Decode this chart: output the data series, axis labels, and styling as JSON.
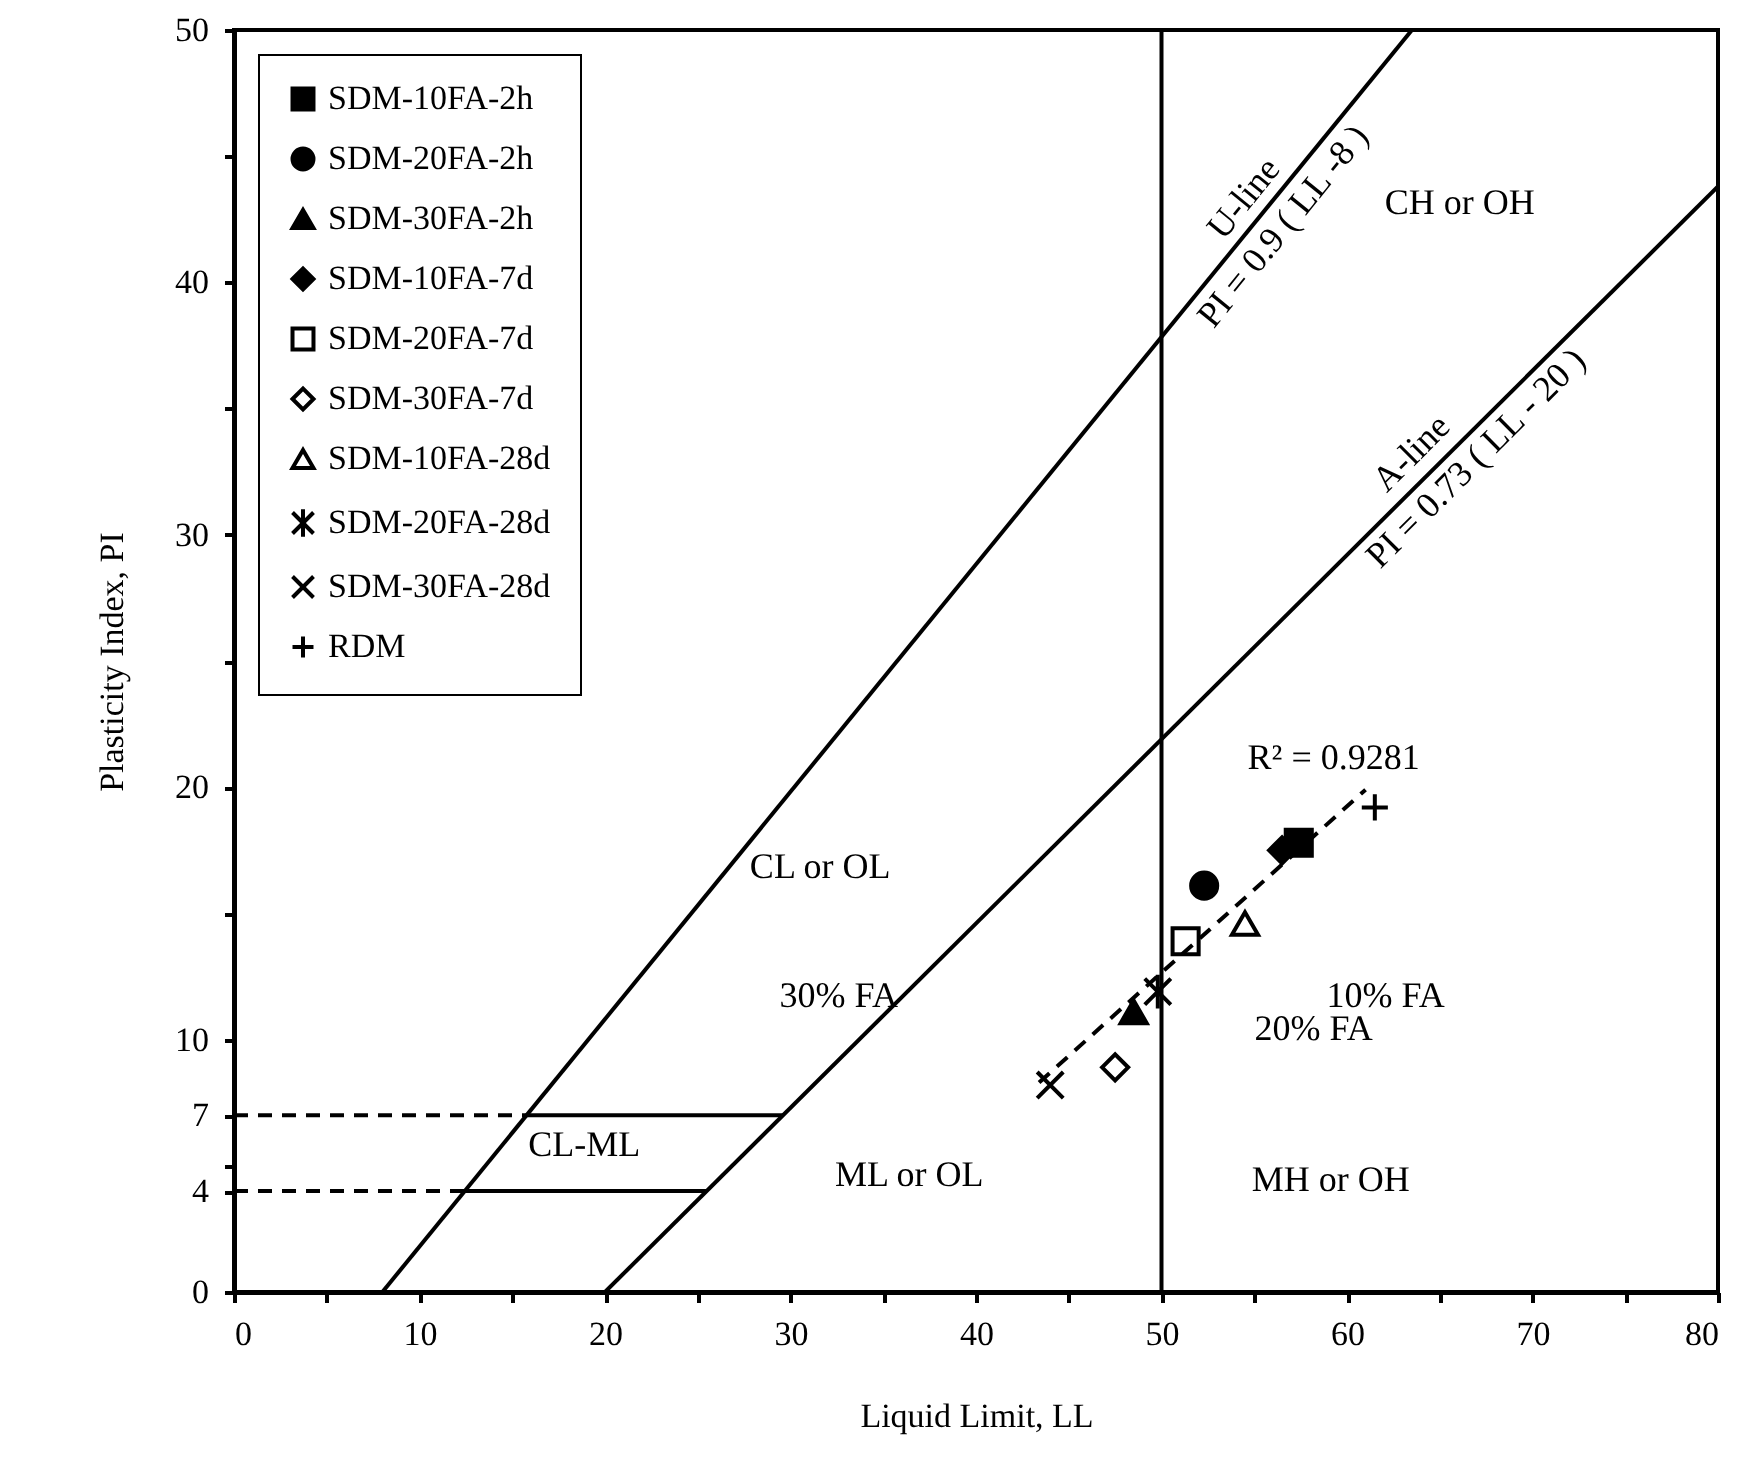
{
  "chart_data": {
    "type": "scatter",
    "xlabel": "Liquid Limit, LL",
    "ylabel": "Plasticity Index, PI",
    "xlim": [
      0,
      80
    ],
    "ylim": [
      0,
      50
    ],
    "xticks": [
      0,
      {
        "value": 5,
        "label": null
      },
      10,
      {
        "value": 15,
        "label": null
      },
      20,
      {
        "value": 25,
        "label": null
      },
      30,
      {
        "value": 35,
        "label": null
      },
      40,
      {
        "value": 45,
        "label": null
      },
      50,
      {
        "value": 55,
        "label": null
      },
      60,
      {
        "value": 65,
        "label": null
      },
      70,
      {
        "value": 75,
        "label": null
      },
      80
    ],
    "yticks": [
      0,
      4,
      {
        "value": 5,
        "label": null
      },
      7,
      10,
      {
        "value": 15,
        "label": null
      },
      20,
      {
        "value": 25,
        "label": null
      },
      30,
      {
        "value": 35,
        "label": null
      },
      40,
      {
        "value": 45,
        "label": null
      },
      50
    ],
    "grid": false,
    "legend": "top left",
    "series": [
      {
        "name": "SDM-10FA-2h",
        "color": "#000000",
        "marker": "square",
        "x": [
          57.4
        ],
        "values": [
          17.8
        ]
      },
      {
        "name": "SDM-20FA-2h",
        "color": "#000000",
        "marker": "circle",
        "x": [
          52.3
        ],
        "values": [
          16.1
        ]
      },
      {
        "name": "SDM-30FA-2h",
        "color": "#000000",
        "marker": "triangle",
        "x": [
          48.5
        ],
        "values": [
          11.1
        ]
      },
      {
        "name": "SDM-10FA-7d",
        "color": "#000000",
        "marker": "diamond",
        "x": [
          56.5
        ],
        "values": [
          17.5
        ]
      },
      {
        "name": "SDM-20FA-7d",
        "color": "#000000",
        "marker": "square-open",
        "x": [
          51.3
        ],
        "values": [
          13.9
        ]
      },
      {
        "name": "SDM-30FA-7d",
        "color": "#000000",
        "marker": "diamond-open",
        "x": [
          47.5
        ],
        "values": [
          8.9
        ]
      },
      {
        "name": "SDM-10FA-28d",
        "color": "#000000",
        "marker": "triangle-open",
        "x": [
          54.5
        ],
        "values": [
          14.6
        ]
      },
      {
        "name": "SDM-20FA-28d",
        "color": "#000000",
        "x": [
          49.8
        ],
        "values": [
          11.9
        ]
      },
      {
        "name": "SDM-30FA-28d",
        "color": "#000000",
        "marker": "x",
        "x": [
          44.0
        ],
        "values": [
          8.2
        ]
      },
      {
        "name": "RDM",
        "color": "#000000",
        "marker": "cross",
        "x": [
          61.5
        ],
        "values": [
          19.2
        ]
      },
      {
        "type": "line",
        "color": "#000000",
        "line_style": "solid",
        "x": [
          8,
          63.5
        ],
        "values": [
          0,
          50
        ]
      },
      {
        "type": "line",
        "color": "#000000",
        "line_style": "solid",
        "x": [
          20,
          80
        ],
        "values": [
          0,
          43.8
        ]
      },
      {
        "type": "line",
        "color": "#000000",
        "line_style": "solid",
        "x": [
          15.8,
          29.6
        ],
        "values": [
          7,
          7
        ]
      },
      {
        "type": "line",
        "color": "#000000",
        "line_style": "solid",
        "x": [
          12.4,
          25.5
        ],
        "values": [
          4,
          4
        ]
      },
      {
        "type": "line",
        "color": "#000000",
        "line_style": "dashed",
        "x": [
          0,
          15.8
        ],
        "values": [
          7,
          7
        ]
      },
      {
        "type": "line",
        "color": "#000000",
        "line_style": "dashed",
        "x": [
          0,
          12.4
        ],
        "values": [
          4,
          4
        ]
      },
      {
        "type": "line",
        "color": "#000000",
        "line_style": "dashed",
        "x": [
          43.4,
          61.0
        ],
        "values": [
          8.3,
          19.9
        ]
      }
    ],
    "ref_lines": [
      {
        "axis": "x",
        "value": 50,
        "color": "#000000"
      }
    ],
    "annotations": [
      "U-line",
      "PI = 0.9 ( LL -8 )",
      "A-line",
      "PI = 0.73 ( LL - 20 )",
      "CH or OH",
      "CL or OL",
      "CL-ML",
      "ML or OL",
      "MH or OH",
      "R² = 0.9281",
      "30% FA",
      "20% FA",
      "10% FA"
    ]
  }
}
